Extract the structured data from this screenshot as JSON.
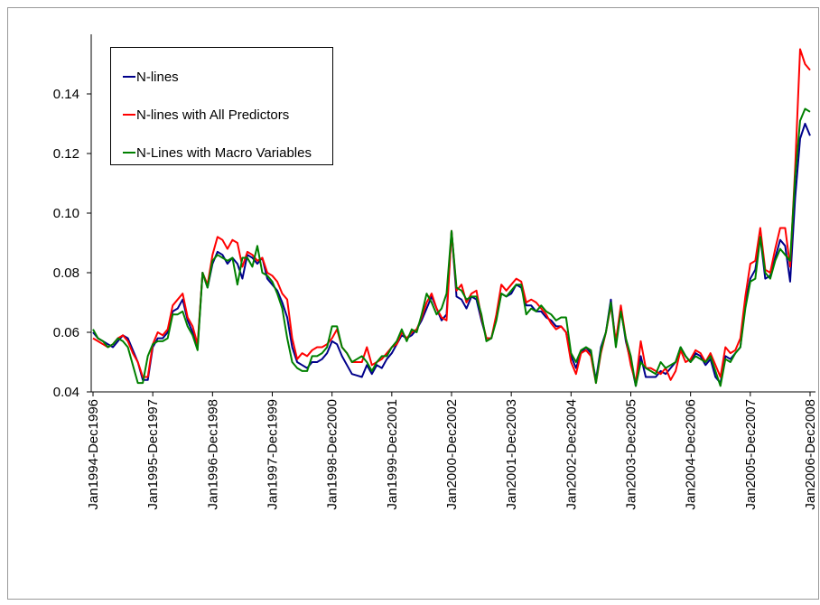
{
  "chart_data": {
    "type": "line",
    "categories": [
      "Jan1994-Dec1996",
      null,
      null,
      null,
      null,
      null,
      null,
      null,
      null,
      null,
      null,
      null,
      "Jan1995-Dec1997",
      null,
      null,
      null,
      null,
      null,
      null,
      null,
      null,
      null,
      null,
      null,
      "Jan1996-Dec1998",
      null,
      null,
      null,
      null,
      null,
      null,
      null,
      null,
      null,
      null,
      null,
      "Jan1997-Dec1999",
      null,
      null,
      null,
      null,
      null,
      null,
      null,
      null,
      null,
      null,
      null,
      "Jan1998-Dec2000",
      null,
      null,
      null,
      null,
      null,
      null,
      null,
      null,
      null,
      null,
      null,
      "Jan1999-Dec2001",
      null,
      null,
      null,
      null,
      null,
      null,
      null,
      null,
      null,
      null,
      null,
      "Jan2000-Dec2002",
      null,
      null,
      null,
      null,
      null,
      null,
      null,
      null,
      null,
      null,
      null,
      "Jan2001-Dec2003",
      null,
      null,
      null,
      null,
      null,
      null,
      null,
      null,
      null,
      null,
      null,
      "Jan2002-Dec2004",
      null,
      null,
      null,
      null,
      null,
      null,
      null,
      null,
      null,
      null,
      null,
      "Jan2003-Dec2005",
      null,
      null,
      null,
      null,
      null,
      null,
      null,
      null,
      null,
      null,
      null,
      "Jan2004-Dec2006",
      null,
      null,
      null,
      null,
      null,
      null,
      null,
      null,
      null,
      null,
      null,
      "Jan2005-Dec2007",
      null,
      null,
      null,
      null,
      null,
      null,
      null,
      null,
      null,
      null,
      null,
      "Jan2006-Dec2008"
    ],
    "series": [
      {
        "name": "N-lines",
        "color": "#00008b",
        "values": [
          0.06,
          0.058,
          0.057,
          0.056,
          0.055,
          0.057,
          0.059,
          0.058,
          0.054,
          0.05,
          0.044,
          0.044,
          0.055,
          0.058,
          0.058,
          0.06,
          0.067,
          0.068,
          0.071,
          0.064,
          0.06,
          0.055,
          0.08,
          0.075,
          0.083,
          0.087,
          0.086,
          0.083,
          0.085,
          0.083,
          0.078,
          0.086,
          0.085,
          0.083,
          0.085,
          0.078,
          0.076,
          0.074,
          0.07,
          0.065,
          0.055,
          0.05,
          0.049,
          0.048,
          0.05,
          0.05,
          0.051,
          0.053,
          0.057,
          0.056,
          0.052,
          0.049,
          0.046,
          0.0455,
          0.045,
          0.049,
          0.046,
          0.049,
          0.048,
          0.051,
          0.053,
          0.056,
          0.059,
          0.058,
          0.059,
          0.061,
          0.064,
          0.068,
          0.072,
          0.068,
          0.064,
          0.066,
          0.094,
          0.072,
          0.071,
          0.068,
          0.072,
          0.071,
          0.064,
          0.058,
          0.058,
          0.065,
          0.073,
          0.072,
          0.073,
          0.076,
          0.075,
          0.069,
          0.069,
          0.067,
          0.067,
          0.065,
          0.064,
          0.062,
          0.062,
          0.06,
          0.052,
          0.048,
          0.053,
          0.055,
          0.053,
          0.044,
          0.055,
          0.06,
          0.071,
          0.056,
          0.068,
          0.057,
          0.05,
          0.042,
          0.052,
          0.045,
          0.045,
          0.045,
          0.047,
          0.046,
          0.048,
          0.05,
          0.055,
          0.052,
          0.05,
          0.053,
          0.052,
          0.049,
          0.051,
          0.045,
          0.043,
          0.052,
          0.051,
          0.053,
          0.055,
          0.07,
          0.078,
          0.081,
          0.092,
          0.078,
          0.079,
          0.085,
          0.091,
          0.089,
          0.077,
          0.105,
          0.125,
          0.13,
          0.126
        ]
      },
      {
        "name": "N-lines with All Predictors",
        "color": "#ff0000",
        "values": [
          0.058,
          0.057,
          0.056,
          0.055,
          0.056,
          0.058,
          0.059,
          0.057,
          0.053,
          0.05,
          0.045,
          0.045,
          0.056,
          0.06,
          0.059,
          0.061,
          0.069,
          0.071,
          0.073,
          0.065,
          0.062,
          0.056,
          0.08,
          0.076,
          0.086,
          0.092,
          0.091,
          0.088,
          0.091,
          0.09,
          0.082,
          0.087,
          0.086,
          0.084,
          0.085,
          0.08,
          0.079,
          0.077,
          0.073,
          0.071,
          0.058,
          0.051,
          0.053,
          0.052,
          0.054,
          0.055,
          0.055,
          0.056,
          0.058,
          0.061,
          0.055,
          0.053,
          0.05,
          0.05,
          0.05,
          0.055,
          0.049,
          0.05,
          0.051,
          0.053,
          0.055,
          0.056,
          0.06,
          0.058,
          0.06,
          0.061,
          0.065,
          0.07,
          0.073,
          0.068,
          0.065,
          0.064,
          0.094,
          0.074,
          0.076,
          0.07,
          0.073,
          0.074,
          0.065,
          0.058,
          0.058,
          0.066,
          0.076,
          0.074,
          0.076,
          0.078,
          0.077,
          0.07,
          0.071,
          0.07,
          0.068,
          0.066,
          0.063,
          0.061,
          0.062,
          0.06,
          0.05,
          0.046,
          0.053,
          0.054,
          0.052,
          0.043,
          0.053,
          0.06,
          0.069,
          0.057,
          0.069,
          0.058,
          0.049,
          0.043,
          0.057,
          0.048,
          0.048,
          0.047,
          0.046,
          0.048,
          0.044,
          0.047,
          0.054,
          0.05,
          0.051,
          0.054,
          0.053,
          0.05,
          0.053,
          0.049,
          0.045,
          0.055,
          0.053,
          0.054,
          0.058,
          0.072,
          0.083,
          0.084,
          0.095,
          0.081,
          0.08,
          0.088,
          0.095,
          0.095,
          0.082,
          0.115,
          0.155,
          0.15,
          0.148
        ]
      },
      {
        "name": "N-Lines with Macro Variables",
        "color": "#008000",
        "values": [
          0.061,
          0.058,
          0.057,
          0.055,
          0.056,
          0.058,
          0.057,
          0.055,
          0.049,
          0.043,
          0.043,
          0.052,
          0.056,
          0.057,
          0.057,
          0.058,
          0.066,
          0.066,
          0.067,
          0.062,
          0.059,
          0.054,
          0.08,
          0.075,
          0.084,
          0.086,
          0.085,
          0.084,
          0.085,
          0.076,
          0.085,
          0.085,
          0.082,
          0.089,
          0.08,
          0.079,
          0.077,
          0.073,
          0.068,
          0.058,
          0.05,
          0.048,
          0.047,
          0.047,
          0.052,
          0.052,
          0.053,
          0.055,
          0.062,
          0.062,
          0.055,
          0.053,
          0.05,
          0.051,
          0.052,
          0.05,
          0.047,
          0.05,
          0.052,
          0.052,
          0.055,
          0.057,
          0.061,
          0.057,
          0.061,
          0.06,
          0.066,
          0.073,
          0.07,
          0.066,
          0.068,
          0.073,
          0.094,
          0.075,
          0.074,
          0.071,
          0.072,
          0.072,
          0.066,
          0.057,
          0.058,
          0.064,
          0.073,
          0.072,
          0.074,
          0.076,
          0.076,
          0.066,
          0.068,
          0.067,
          0.069,
          0.067,
          0.066,
          0.064,
          0.065,
          0.065,
          0.053,
          0.05,
          0.054,
          0.055,
          0.054,
          0.043,
          0.054,
          0.06,
          0.07,
          0.055,
          0.067,
          0.058,
          0.052,
          0.042,
          0.05,
          0.048,
          0.047,
          0.046,
          0.05,
          0.048,
          0.049,
          0.05,
          0.055,
          0.052,
          0.05,
          0.052,
          0.051,
          0.05,
          0.052,
          0.047,
          0.042,
          0.051,
          0.05,
          0.053,
          0.055,
          0.068,
          0.077,
          0.078,
          0.092,
          0.08,
          0.078,
          0.084,
          0.088,
          0.086,
          0.084,
          0.112,
          0.131,
          0.135,
          0.134
        ]
      }
    ],
    "ylim": [
      0.04,
      0.16
    ],
    "yticks": [
      0.04,
      0.06,
      0.08,
      {
        "value": 0.1,
        "label": "0.10"
      },
      0.12,
      0.14
    ]
  }
}
